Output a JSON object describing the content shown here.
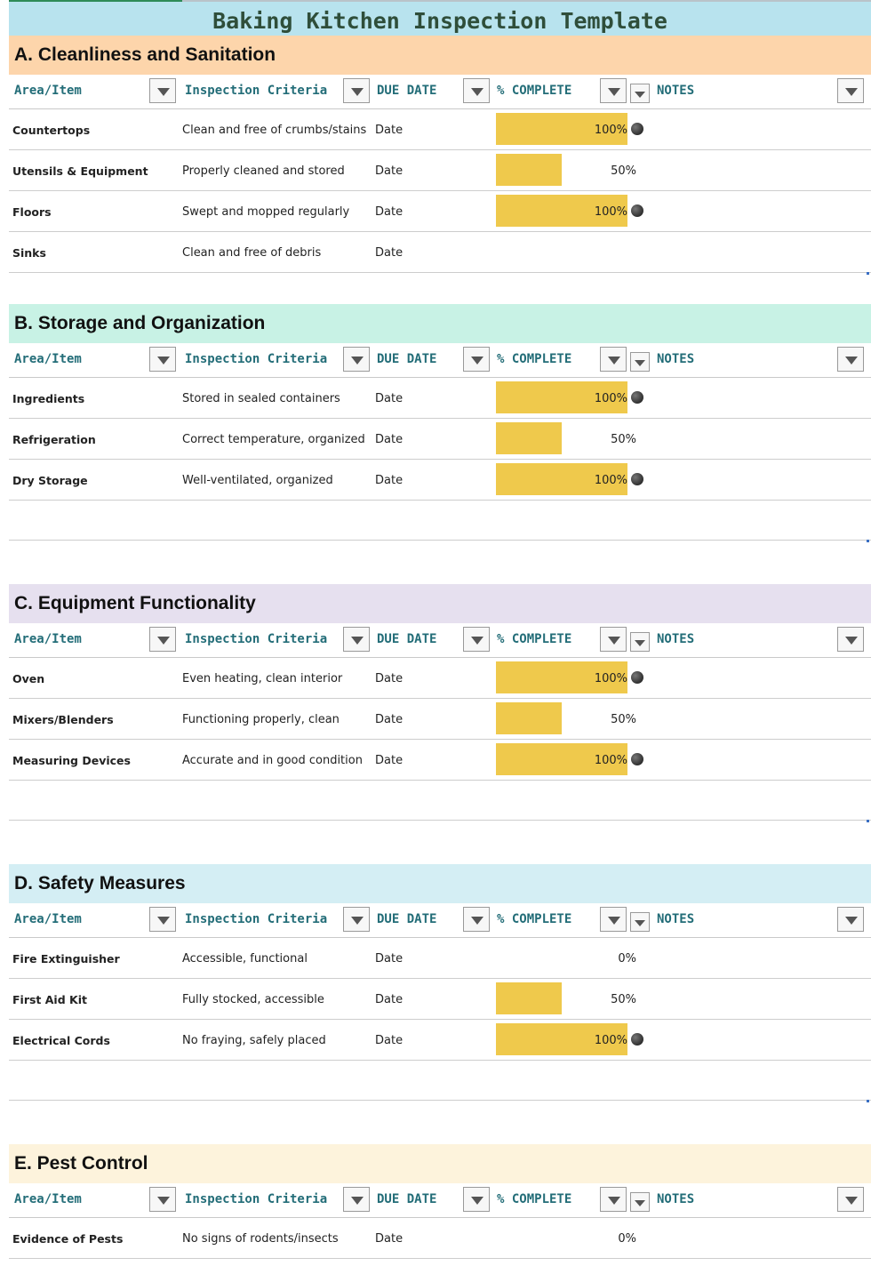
{
  "title": "Baking Kitchen Inspection Template",
  "headers": {
    "area": "Area/Item",
    "criteria": "Inspection Criteria",
    "due": "DUE DATE",
    "complete": "% COMPLETE",
    "notes": "NOTES"
  },
  "sections": [
    {
      "heading": "A. Cleanliness and Sanitation",
      "color": "#fdd5ab",
      "rows": [
        {
          "item": "Countertops",
          "criteria": "Clean and free of crumbs/stains",
          "due": "Date",
          "pct": "100%",
          "value": 1.0
        },
        {
          "item": "Utensils & Equipment",
          "criteria": "Properly cleaned and stored",
          "due": "Date",
          "pct": "50%",
          "value": 0.5
        },
        {
          "item": "Floors",
          "criteria": "Swept and mopped regularly",
          "due": "Date",
          "pct": "100%",
          "value": 1.0
        },
        {
          "item": "Sinks",
          "criteria": "Clean and free of debris",
          "due": "Date",
          "pct": "",
          "value": 0
        }
      ]
    },
    {
      "heading": "B. Storage and Organization",
      "color": "#c8f2e5",
      "rows": [
        {
          "item": "Ingredients",
          "criteria": "Stored in sealed containers",
          "due": "Date",
          "pct": "100%",
          "value": 1.0
        },
        {
          "item": "Refrigeration",
          "criteria": "Correct temperature, organized",
          "due": "Date",
          "pct": "50%",
          "value": 0.5
        },
        {
          "item": "Dry Storage",
          "criteria": "Well-ventilated, organized",
          "due": "Date",
          "pct": "100%",
          "value": 1.0
        }
      ]
    },
    {
      "heading": "C. Equipment Functionality",
      "color": "#e6e0ef",
      "rows": [
        {
          "item": "Oven",
          "criteria": "Even heating, clean interior",
          "due": "Date",
          "pct": "100%",
          "value": 1.0
        },
        {
          "item": "Mixers/Blenders",
          "criteria": "Functioning properly, clean",
          "due": "Date",
          "pct": "50%",
          "value": 0.5
        },
        {
          "item": "Measuring Devices",
          "criteria": "Accurate and in good condition",
          "due": "Date",
          "pct": "100%",
          "value": 1.0
        }
      ]
    },
    {
      "heading": "D. Safety Measures",
      "color": "#d4eef4",
      "rows": [
        {
          "item": "Fire Extinguisher",
          "criteria": "Accessible, functional",
          "due": "Date",
          "pct": "0%",
          "value": 0
        },
        {
          "item": "First Aid Kit",
          "criteria": "Fully stocked, accessible",
          "due": "Date",
          "pct": "50%",
          "value": 0.5
        },
        {
          "item": "Electrical Cords",
          "criteria": "No fraying, safely placed",
          "due": "Date",
          "pct": "100%",
          "value": 1.0
        }
      ]
    },
    {
      "heading": "E. Pest Control",
      "color": "#fdf3dc",
      "rows": [
        {
          "item": "Evidence of Pests",
          "criteria": "No signs of rodents/insects",
          "due": "Date",
          "pct": "0%",
          "value": 0
        }
      ]
    }
  ]
}
